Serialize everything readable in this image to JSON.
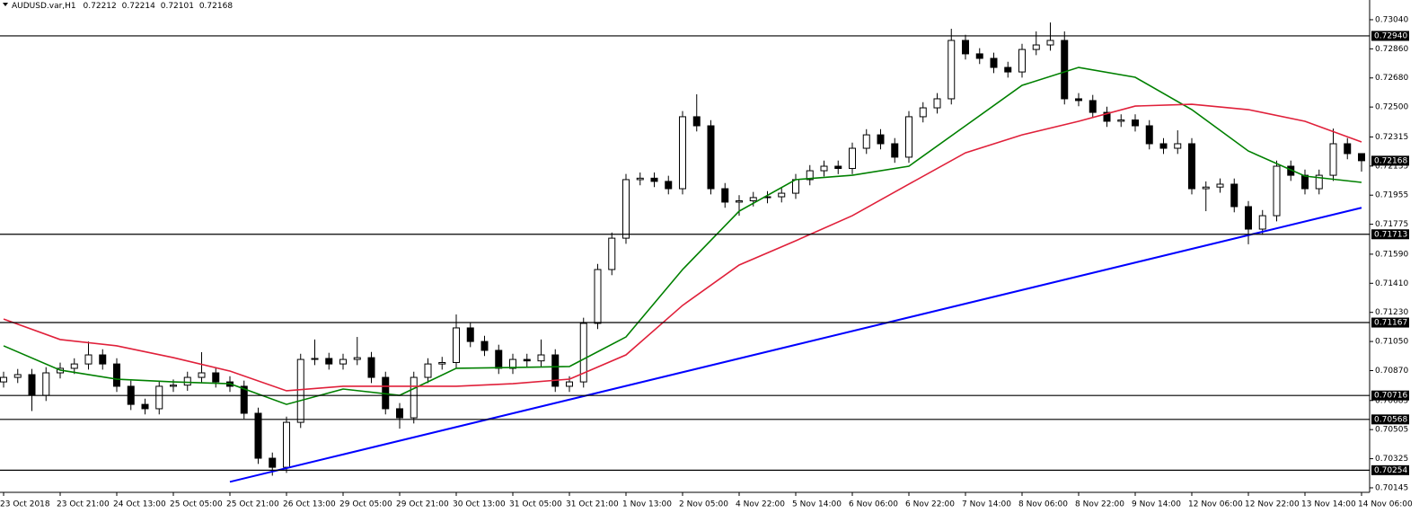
{
  "chart_data": {
    "type": "candlestick",
    "title": "AUDUSD.var,H1",
    "categories": [
      "23 Oct 2018",
      null,
      null,
      null,
      "23 Oct 21:00",
      null,
      null,
      null,
      "24 Oct 13:00",
      null,
      null,
      null,
      "25 Oct 05:00",
      null,
      null,
      null,
      "25 Oct 21:00",
      null,
      null,
      null,
      "26 Oct 13:00",
      null,
      null,
      null,
      "29 Oct 05:00",
      null,
      null,
      null,
      "29 Oct 21:00",
      null,
      null,
      null,
      "30 Oct 13:00",
      null,
      null,
      null,
      "31 Oct 05:00",
      null,
      null,
      null,
      "31 Oct 21:00",
      null,
      null,
      null,
      "1 Nov 13:00",
      null,
      null,
      null,
      "2 Nov 05:00",
      null,
      null,
      null,
      "4 Nov 22:00",
      null,
      null,
      null,
      "5 Nov 14:00",
      null,
      null,
      null,
      "6 Nov 06:00",
      null,
      null,
      null,
      "6 Nov 22:00",
      null,
      null,
      null,
      "7 Nov 14:00",
      null,
      null,
      null,
      "8 Nov 06:00",
      null,
      null,
      null,
      "8 Nov 22:00",
      null,
      null,
      null,
      "9 Nov 14:00",
      null,
      null,
      null,
      "12 Nov 06:00",
      null,
      null,
      null,
      "12 Nov 22:00",
      null,
      null,
      null,
      "13 Nov 14:00",
      null,
      null,
      null,
      "14 Nov 06:00"
    ],
    "open": [
      0.708,
      0.70828,
      0.70845,
      0.70717,
      0.70856,
      0.70884,
      0.70911,
      0.70967,
      0.70911,
      0.70773,
      0.70661,
      0.70634,
      0.70773,
      0.7078,
      0.70828,
      0.70856,
      0.708,
      0.70773,
      0.70606,
      0.70328,
      0.70272,
      0.7055,
      0.70939,
      0.70945,
      0.70911,
      0.70939,
      0.7095,
      0.70828,
      0.70634,
      0.70578,
      0.70828,
      0.70911,
      0.7092,
      0.71134,
      0.7105,
      0.70995,
      0.70884,
      0.70939,
      0.7093,
      0.70967,
      0.70773,
      0.708,
      0.71162,
      0.71495,
      0.71689,
      0.72051,
      0.7206,
      0.7204,
      0.71995,
      0.7244,
      0.72384,
      0.71995,
      0.71912,
      0.7192,
      0.7194,
      0.71945,
      0.71967,
      0.72051,
      0.72106,
      0.72134,
      0.7212,
      0.72245,
      0.72328,
      0.72273,
      0.7219,
      0.7244,
      0.72495,
      0.72551,
      0.72912,
      0.72829,
      0.72801,
      0.72745,
      0.72717,
      0.72856,
      0.72884,
      0.72912,
      0.72551,
      0.7254,
      0.72467,
      0.72412,
      0.7242,
      0.72384,
      0.72273,
      0.72245,
      0.72273,
      0.71995,
      0.72005,
      0.72023,
      0.71884,
      0.71745,
      0.71828,
      0.72134,
      0.72078,
      0.71995,
      0.72078,
      0.72273,
      0.72212
    ],
    "high": [
      0.70863,
      0.7088,
      0.7088,
      0.70891,
      0.70919,
      0.70946,
      0.7105,
      0.71002,
      0.70946,
      0.70808,
      0.70696,
      0.70808,
      0.70815,
      0.70863,
      0.70984,
      0.70891,
      0.70835,
      0.70808,
      0.70641,
      0.70363,
      0.70585,
      0.70974,
      0.71062,
      0.7098,
      0.70974,
      0.71078,
      0.70985,
      0.70863,
      0.70669,
      0.70863,
      0.70946,
      0.70955,
      0.71217,
      0.71169,
      0.71085,
      0.7103,
      0.70974,
      0.70974,
      0.71062,
      0.71002,
      0.70835,
      0.71197,
      0.7153,
      0.71724,
      0.72086,
      0.72095,
      0.72095,
      0.72075,
      0.72475,
      0.72579,
      0.72419,
      0.7203,
      0.71955,
      0.71975,
      0.7198,
      0.72002,
      0.72086,
      0.72141,
      0.72169,
      0.72169,
      0.7228,
      0.72363,
      0.72363,
      0.72308,
      0.72475,
      0.7253,
      0.72586,
      0.72984,
      0.72947,
      0.72864,
      0.72836,
      0.7278,
      0.72891,
      0.72968,
      0.73023,
      0.72968,
      0.72586,
      0.72575,
      0.72502,
      0.72455,
      0.72455,
      0.72419,
      0.72308,
      0.72356,
      0.72308,
      0.7204,
      0.72058,
      0.72058,
      0.71919,
      0.71863,
      0.72169,
      0.72169,
      0.72113,
      0.72113,
      0.72367,
      0.72308,
      0.72214
    ],
    "low": [
      0.70765,
      0.70793,
      0.7062,
      0.70682,
      0.70821,
      0.70849,
      0.70876,
      0.70876,
      0.70738,
      0.70626,
      0.70599,
      0.70599,
      0.70738,
      0.70745,
      0.70793,
      0.70765,
      0.70738,
      0.70571,
      0.70293,
      0.7022,
      0.70237,
      0.70515,
      0.70904,
      0.70876,
      0.70876,
      0.70904,
      0.70793,
      0.70599,
      0.70511,
      0.70543,
      0.70793,
      0.70876,
      0.70885,
      0.71015,
      0.7096,
      0.70849,
      0.70849,
      0.70895,
      0.70895,
      0.70738,
      0.70738,
      0.70765,
      0.71127,
      0.7146,
      0.71654,
      0.72016,
      0.72005,
      0.7196,
      0.7196,
      0.72349,
      0.7196,
      0.71877,
      0.71828,
      0.71885,
      0.71905,
      0.7191,
      0.71932,
      0.72016,
      0.72071,
      0.72085,
      0.72085,
      0.7221,
      0.72238,
      0.72155,
      0.72155,
      0.72405,
      0.7246,
      0.72516,
      0.72794,
      0.72766,
      0.7271,
      0.72682,
      0.72682,
      0.72821,
      0.72849,
      0.72516,
      0.72505,
      0.72432,
      0.72377,
      0.72377,
      0.72349,
      0.72238,
      0.7221,
      0.7221,
      0.7196,
      0.71856,
      0.7197,
      0.71849,
      0.71651,
      0.7171,
      0.71793,
      0.72043,
      0.7196,
      0.7196,
      0.72043,
      0.72177,
      0.72101
    ],
    "close": [
      0.70828,
      0.70845,
      0.70717,
      0.70856,
      0.70884,
      0.70911,
      0.70967,
      0.70911,
      0.70773,
      0.70661,
      0.70634,
      0.70773,
      0.7078,
      0.70828,
      0.70856,
      0.708,
      0.70773,
      0.70606,
      0.70328,
      0.70272,
      0.7055,
      0.70939,
      0.70945,
      0.70911,
      0.70939,
      0.7095,
      0.70828,
      0.70634,
      0.70578,
      0.70828,
      0.70911,
      0.7092,
      0.71134,
      0.7105,
      0.70995,
      0.70884,
      0.70939,
      0.7093,
      0.70967,
      0.70773,
      0.708,
      0.71162,
      0.71495,
      0.71689,
      0.72051,
      0.7206,
      0.7204,
      0.71995,
      0.7244,
      0.72384,
      0.71995,
      0.71912,
      0.7192,
      0.7194,
      0.71945,
      0.71967,
      0.72051,
      0.72106,
      0.72134,
      0.7212,
      0.72245,
      0.72328,
      0.72273,
      0.7219,
      0.7244,
      0.72495,
      0.72551,
      0.72912,
      0.72829,
      0.72801,
      0.72745,
      0.72717,
      0.72856,
      0.72884,
      0.72912,
      0.72551,
      0.7254,
      0.72467,
      0.72412,
      0.7242,
      0.72384,
      0.72273,
      0.72245,
      0.72273,
      0.71995,
      0.72005,
      0.72023,
      0.71884,
      0.71745,
      0.71828,
      0.72134,
      0.72078,
      0.71995,
      0.72078,
      0.72273,
      0.72212,
      0.72168
    ],
    "up_color": "#ffffff",
    "down_color": "#000000",
    "ylim": [
      0.70117,
      0.73162
    ],
    "yticks": [
      {
        "value": 0.7304,
        "label": "0.73040"
      },
      {
        "value": 0.7286,
        "label": "0.72860"
      },
      {
        "value": 0.7268,
        "label": "0.72680"
      },
      {
        "value": 0.725,
        "label": "0.72500"
      },
      {
        "value": 0.72315,
        "label": "0.72315"
      },
      {
        "value": 0.72135,
        "label": "0.72135"
      },
      {
        "value": 0.71955,
        "label": "0.71955"
      },
      {
        "value": 0.71775,
        "label": "0.71775"
      },
      {
        "value": 0.7159,
        "label": "0.71590"
      },
      {
        "value": 0.7141,
        "label": "0.71410"
      },
      {
        "value": 0.7123,
        "label": "0.71230"
      },
      {
        "value": 0.7105,
        "label": "0.71050"
      },
      {
        "value": 0.7087,
        "label": "0.70870"
      },
      {
        "value": 0.70685,
        "label": "0.70685"
      },
      {
        "value": 0.70505,
        "label": "0.70505"
      },
      {
        "value": 0.70325,
        "label": "0.70325"
      },
      {
        "value": 0.70145,
        "label": "0.70145"
      }
    ],
    "grid": false,
    "lines": [
      {
        "color": "#008000",
        "x": [
          0,
          4,
          8,
          12,
          16,
          20,
          24,
          28,
          32,
          36,
          40,
          44,
          48,
          52,
          56,
          60,
          64,
          68,
          72,
          76,
          80,
          84,
          88,
          92,
          96
        ],
        "values": [
          0.71023,
          0.70873,
          0.70817,
          0.708,
          0.70789,
          0.70661,
          0.70756,
          0.70717,
          0.70884,
          0.70889,
          0.70895,
          0.71078,
          0.71495,
          0.71856,
          0.72051,
          0.72078,
          0.72134,
          0.72384,
          0.72634,
          0.72745,
          0.72684,
          0.72484,
          0.72228,
          0.72073,
          0.72034
        ]
      },
      {
        "color": "#e0203a",
        "x": [
          0,
          4,
          8,
          12,
          16,
          20,
          24,
          28,
          32,
          36,
          40,
          44,
          48,
          52,
          56,
          60,
          64,
          68,
          72,
          76,
          80,
          84,
          88,
          92,
          96
        ],
        "values": [
          0.71189,
          0.71062,
          0.71023,
          0.7095,
          0.70867,
          0.70745,
          0.70773,
          0.70773,
          0.70773,
          0.70789,
          0.70817,
          0.70967,
          0.71273,
          0.71523,
          0.71673,
          0.71828,
          0.72023,
          0.72217,
          0.72328,
          0.72412,
          0.72506,
          0.72517,
          0.72484,
          0.72412,
          0.72284
        ]
      }
    ],
    "trendline": {
      "color": "#0000ff",
      "x": [
        16,
        96
      ],
      "values": [
        0.70182,
        0.71877
      ]
    },
    "hlines": [
      {
        "value": 0.7294,
        "label": "0.72940"
      },
      {
        "value": 0.71713,
        "label": "0.71713"
      },
      {
        "value": 0.71167,
        "label": "0.71167"
      },
      {
        "value": 0.70716,
        "label": "0.70716"
      },
      {
        "value": 0.70568,
        "label": "0.70568"
      },
      {
        "value": 0.70254,
        "label": "0.70254"
      }
    ]
  }
}
